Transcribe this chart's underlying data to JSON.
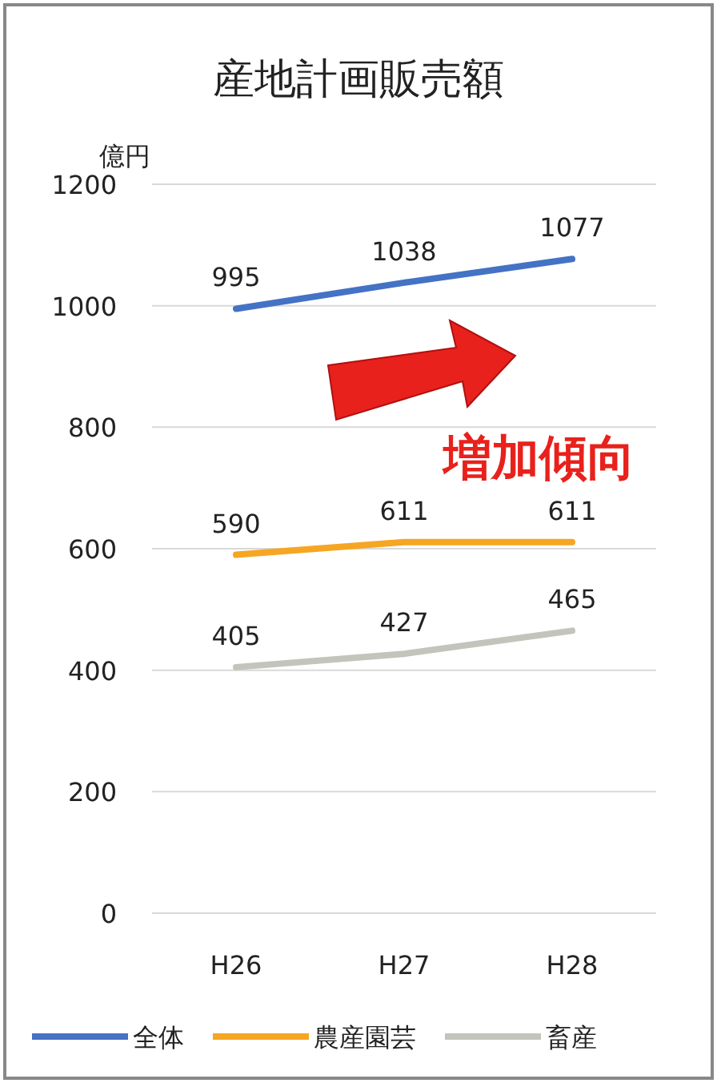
{
  "chart_data": {
    "type": "line",
    "title": "産地計画販売額",
    "ylabel": "億円",
    "annotations": [
      "増加傾向"
    ],
    "categories": [
      "H26",
      "H27",
      "H28"
    ],
    "series": [
      {
        "name": "全体",
        "color": "#4472c4",
        "values": [
          995,
          1038,
          1077
        ]
      },
      {
        "name": "農産園芸",
        "color": "#f5a623",
        "values": [
          590,
          611,
          611
        ]
      },
      {
        "name": "畜産",
        "color": "#c4c4bc",
        "values": [
          405,
          427,
          465
        ]
      }
    ],
    "ylim": [
      0,
      1200
    ],
    "yticks": [
      0,
      200,
      400,
      600,
      800,
      1000,
      1200
    ],
    "grid": "y",
    "legend": "bottom",
    "data_labels": true
  }
}
